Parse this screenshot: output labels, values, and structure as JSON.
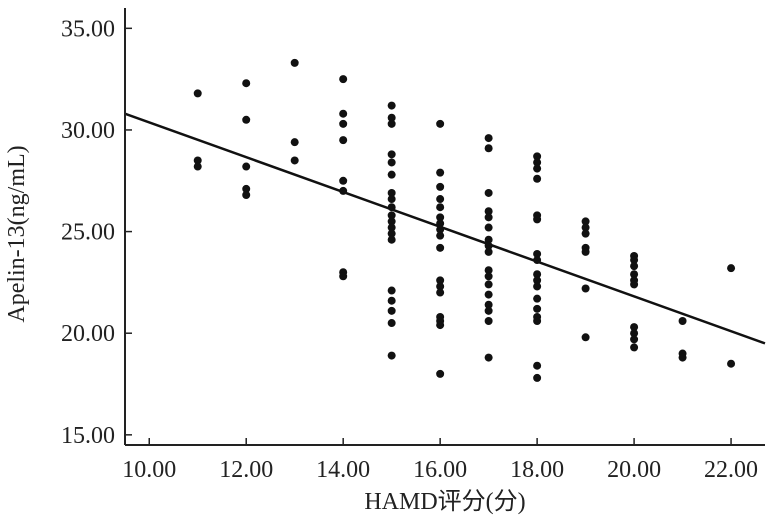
{
  "chart_data": {
    "type": "scatter",
    "title": "",
    "xlabel": "HAMD评分(分)",
    "ylabel": "Apelin-13(ng/mL)",
    "xlim": [
      9.5,
      22.7
    ],
    "ylim": [
      14.5,
      36.0
    ],
    "x_ticks": [
      "10.00",
      "12.00",
      "14.00",
      "16.00",
      "18.00",
      "20.00",
      "22.00"
    ],
    "y_ticks": [
      "15.00",
      "20.00",
      "25.00",
      "30.00",
      "35.00"
    ],
    "grid": false,
    "legend": "none",
    "point_color": "#111111",
    "series": [
      {
        "points": [
          [
            11,
            31.8
          ],
          [
            11,
            28.5
          ],
          [
            11,
            28.2
          ],
          [
            12,
            32.3
          ],
          [
            12,
            30.5
          ],
          [
            12,
            28.2
          ],
          [
            12,
            27.1
          ],
          [
            12,
            26.8
          ],
          [
            13,
            33.3
          ],
          [
            13,
            29.4
          ],
          [
            13,
            28.5
          ],
          [
            14,
            32.5
          ],
          [
            14,
            30.8
          ],
          [
            14,
            30.3
          ],
          [
            14,
            29.5
          ],
          [
            14,
            27.5
          ],
          [
            14,
            27.0
          ],
          [
            14,
            23.0
          ],
          [
            14,
            22.8
          ],
          [
            15,
            31.2
          ],
          [
            15,
            30.6
          ],
          [
            15,
            30.3
          ],
          [
            15,
            28.8
          ],
          [
            15,
            28.4
          ],
          [
            15,
            27.8
          ],
          [
            15,
            26.9
          ],
          [
            15,
            26.6
          ],
          [
            15,
            26.2
          ],
          [
            15,
            25.8
          ],
          [
            15,
            25.5
          ],
          [
            15,
            25.2
          ],
          [
            15,
            24.9
          ],
          [
            15,
            24.6
          ],
          [
            15,
            22.1
          ],
          [
            15,
            21.6
          ],
          [
            15,
            21.1
          ],
          [
            15,
            20.5
          ],
          [
            15,
            18.9
          ],
          [
            16,
            30.3
          ],
          [
            16,
            27.9
          ],
          [
            16,
            27.2
          ],
          [
            16,
            26.6
          ],
          [
            16,
            26.2
          ],
          [
            16,
            25.7
          ],
          [
            16,
            25.4
          ],
          [
            16,
            25.1
          ],
          [
            16,
            24.8
          ],
          [
            16,
            24.2
          ],
          [
            16,
            22.6
          ],
          [
            16,
            22.3
          ],
          [
            16,
            22.0
          ],
          [
            16,
            20.8
          ],
          [
            16,
            20.6
          ],
          [
            16,
            20.4
          ],
          [
            16,
            18.0
          ],
          [
            17,
            29.6
          ],
          [
            17,
            29.1
          ],
          [
            17,
            26.9
          ],
          [
            17,
            26.0
          ],
          [
            17,
            25.7
          ],
          [
            17,
            25.2
          ],
          [
            17,
            24.6
          ],
          [
            17,
            24.3
          ],
          [
            17,
            24.0
          ],
          [
            17,
            23.1
          ],
          [
            17,
            22.8
          ],
          [
            17,
            22.4
          ],
          [
            17,
            21.9
          ],
          [
            17,
            21.4
          ],
          [
            17,
            21.1
          ],
          [
            17,
            20.6
          ],
          [
            17,
            18.8
          ],
          [
            18,
            28.7
          ],
          [
            18,
            28.4
          ],
          [
            18,
            28.1
          ],
          [
            18,
            27.6
          ],
          [
            18,
            25.8
          ],
          [
            18,
            25.6
          ],
          [
            18,
            23.9
          ],
          [
            18,
            23.6
          ],
          [
            18,
            22.9
          ],
          [
            18,
            22.6
          ],
          [
            18,
            22.3
          ],
          [
            18,
            21.7
          ],
          [
            18,
            21.2
          ],
          [
            18,
            20.8
          ],
          [
            18,
            20.6
          ],
          [
            18,
            18.4
          ],
          [
            18,
            17.8
          ],
          [
            19,
            25.5
          ],
          [
            19,
            25.2
          ],
          [
            19,
            24.9
          ],
          [
            19,
            24.2
          ],
          [
            19,
            24.0
          ],
          [
            19,
            22.2
          ],
          [
            19,
            19.8
          ],
          [
            20,
            23.8
          ],
          [
            20,
            23.6
          ],
          [
            20,
            23.3
          ],
          [
            20,
            22.9
          ],
          [
            20,
            22.6
          ],
          [
            20,
            22.4
          ],
          [
            20,
            20.3
          ],
          [
            20,
            20.0
          ],
          [
            20,
            19.7
          ],
          [
            20,
            19.3
          ],
          [
            21,
            20.6
          ],
          [
            21,
            19.0
          ],
          [
            21,
            18.8
          ],
          [
            22,
            23.2
          ],
          [
            22,
            18.5
          ]
        ]
      }
    ],
    "regression_line": {
      "x": [
        9.5,
        22.7
      ],
      "y": [
        30.8,
        19.5
      ]
    }
  }
}
